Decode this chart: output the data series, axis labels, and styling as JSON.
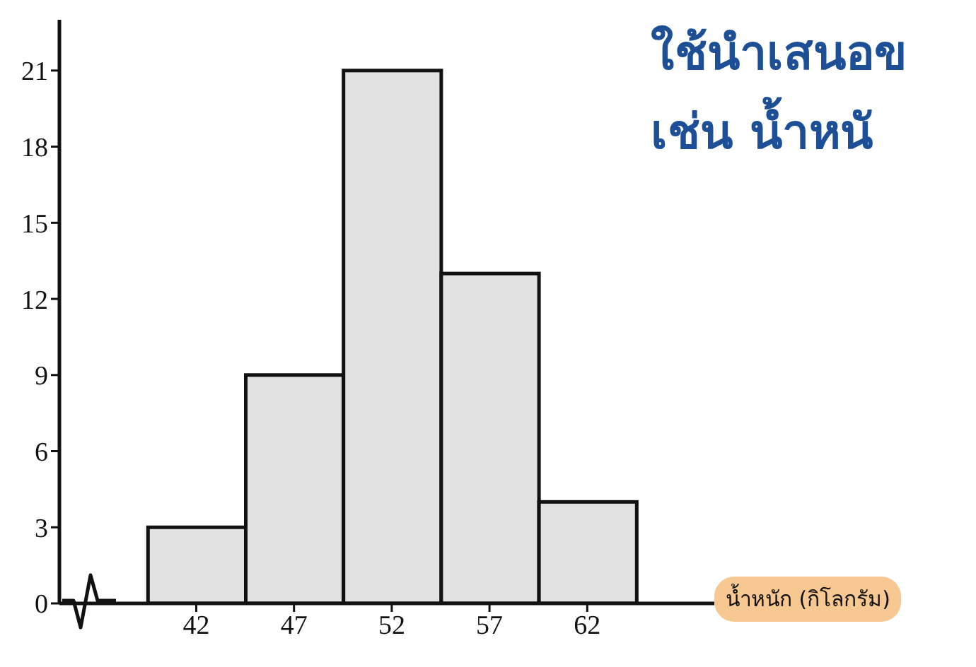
{
  "chart_data": {
    "type": "histogram",
    "xlabel": "น้ำหนัก (กิโลกรัม)",
    "annotations": [
      "ใช้นำเสนอข",
      "เช่น น้ำหนั"
    ],
    "bins": [
      39.5,
      44.5,
      49.5,
      54.5,
      59.5,
      64.5
    ],
    "values": [
      3,
      9,
      21,
      13,
      4
    ],
    "color": "#e2e2e2",
    "xlim": [
      35,
      68.5
    ],
    "xticks": [
      42,
      47,
      52,
      57,
      62
    ],
    "ylim": [
      0,
      23
    ],
    "yticks": [
      0,
      3,
      6,
      9,
      12,
      15,
      18,
      21
    ],
    "grid": false,
    "legend": false
  }
}
